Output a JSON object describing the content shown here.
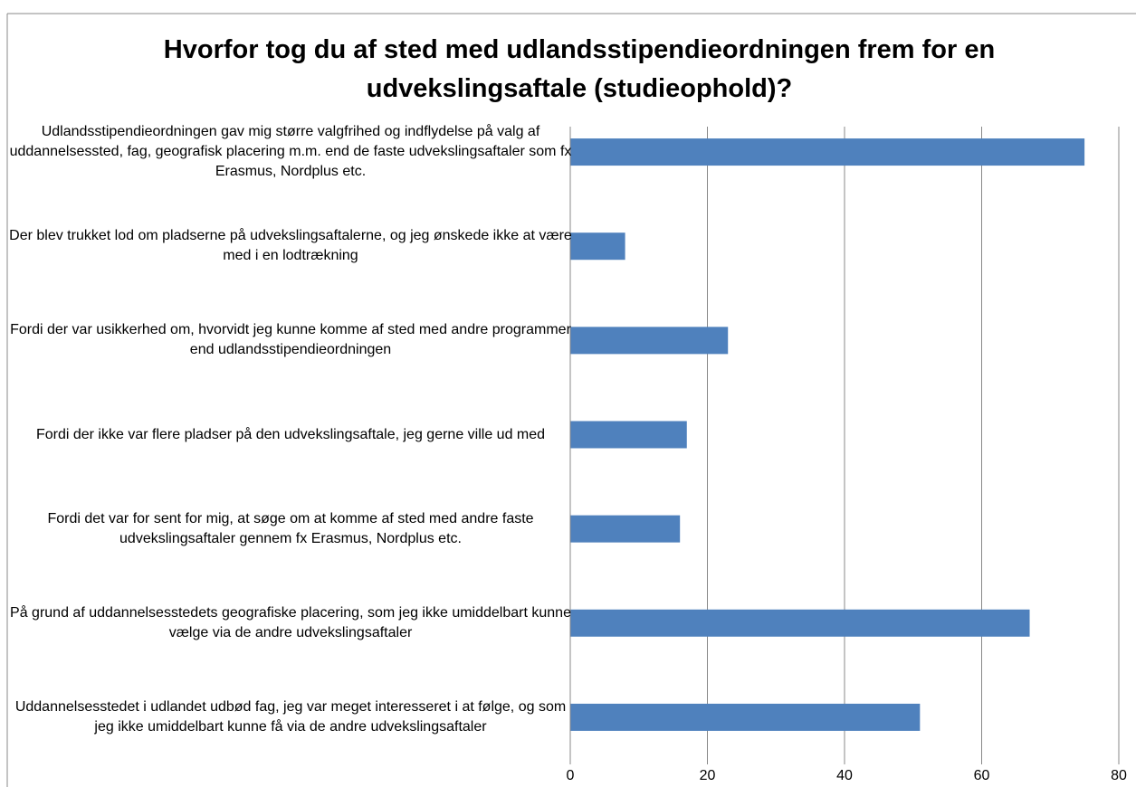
{
  "chart_data": {
    "type": "bar",
    "orientation": "horizontal",
    "title": "Hvorfor tog du af sted med udlandsstipendieordningen frem for en udvekslingsaftale (studieophold)?",
    "categories": [
      "Udlandsstipendieordningen gav mig større valgfrihed og indflydelse på valg af uddannelsessted, fag, geografisk placering m.m. end de faste udvekslingsaftaler som fx Erasmus, Nordplus etc.",
      "Der blev trukket lod om pladserne på udvekslingsaftalerne, og jeg ønskede ikke at være med i en lodtrækning",
      "Fordi der var usikkerhed om, hvorvidt jeg kunne komme af sted med andre programmer end udlandsstipendieordningen",
      "Fordi der ikke var flere pladser på den udvekslingsaftale, jeg gerne ville ud med",
      "Fordi det var for sent for mig, at søge om at komme af sted med andre faste udvekslingsaftaler gennem fx Erasmus, Nordplus etc.",
      "På grund af uddannelsesstedets geografiske placering, som jeg ikke umiddelbart kunne vælge via de andre udvekslingsaftaler",
      "Uddannelsesstedet i udlandet udbød fag, jeg var meget interesseret i at følge, og som jeg ikke umiddelbart kunne få via de andre udvekslingsaftaler"
    ],
    "values": [
      75,
      8,
      23,
      17,
      16,
      67,
      51
    ],
    "color": "#4f81bd",
    "xlim": [
      0,
      80
    ],
    "xticks": [
      0,
      20,
      40,
      60,
      80
    ],
    "grid": true
  }
}
